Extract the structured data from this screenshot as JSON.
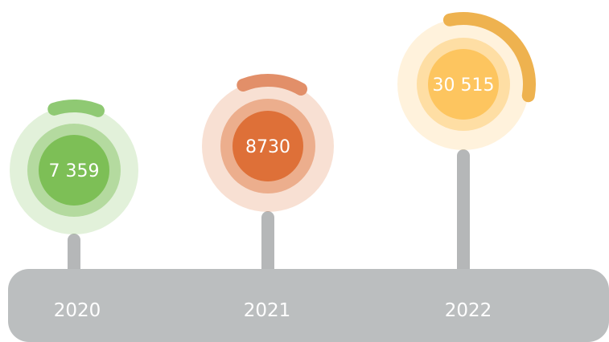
{
  "chart_data": {
    "type": "bar",
    "categories": [
      "2020",
      "2021",
      "2022"
    ],
    "values": [
      7359,
      8730,
      30515
    ],
    "value_labels": [
      "7 359",
      "8730",
      "30 515"
    ],
    "colors": [
      "#7dbf56",
      "#de7038",
      "#fdc55f"
    ],
    "arc_colors": [
      "#8fc973",
      "#e28f69",
      "#eeb24f"
    ],
    "timeline_color": "#bbbebf",
    "stem_color": "#b5b7b8"
  }
}
